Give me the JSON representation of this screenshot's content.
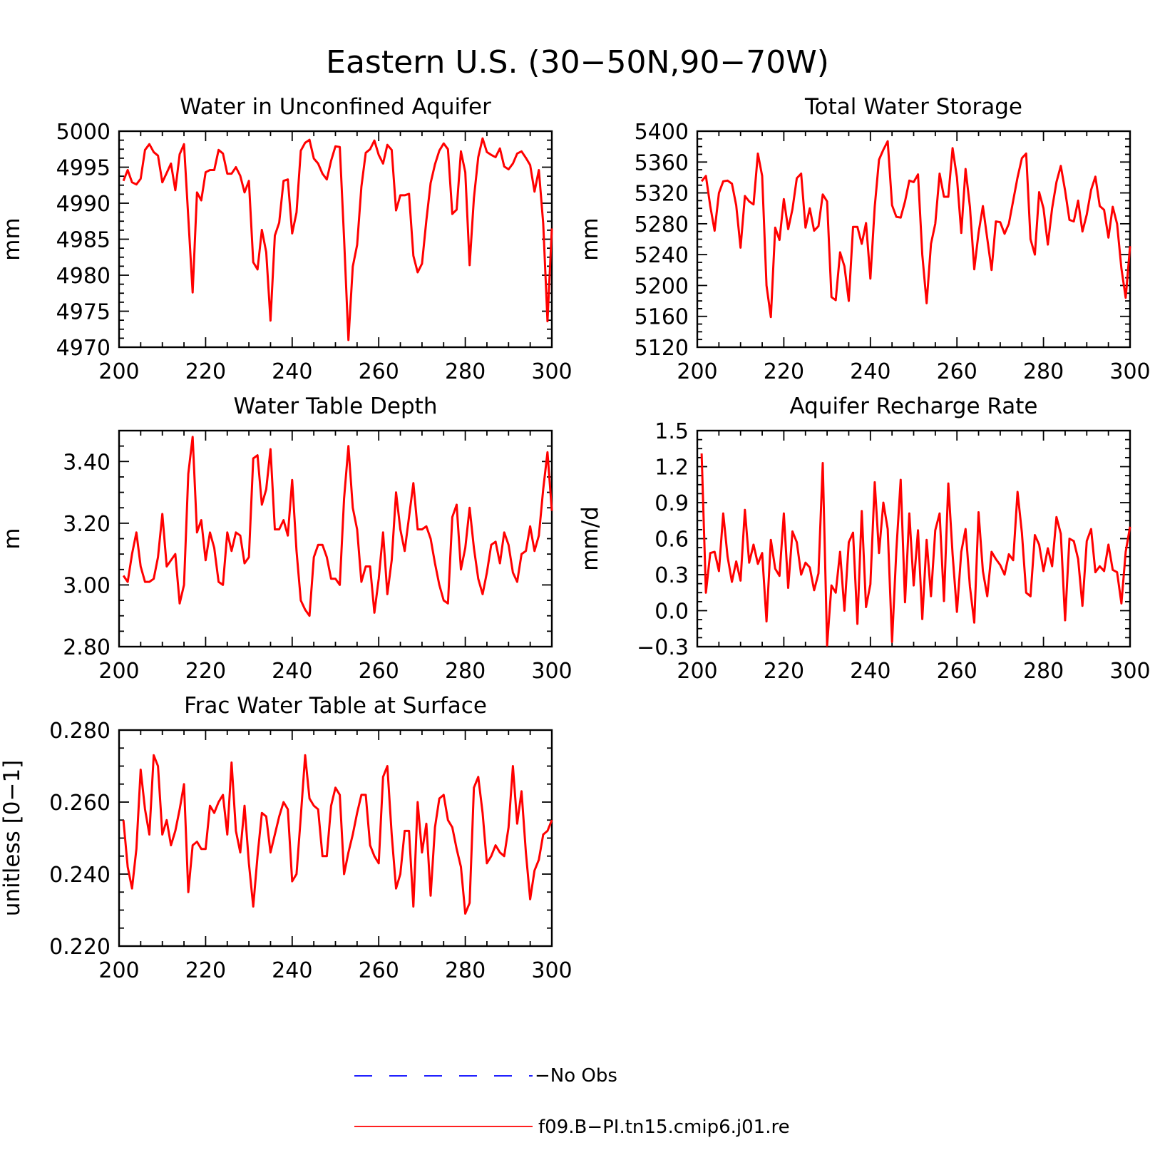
{
  "figure": {
    "title": "Eastern U.S. (30−50N,90−70W)",
    "legend": [
      {
        "label": "−No Obs",
        "color": "#0000ff",
        "dash": true
      },
      {
        "label": "f09.B−PI.tn15.cmip6.j01.re",
        "color": "#ff0000",
        "dash": false
      }
    ],
    "line_color": "#ff0000"
  },
  "chart_data": [
    {
      "type": "line",
      "title": "Water in Unconfined Aquifer",
      "ylabel": "mm",
      "xlim": [
        200,
        300
      ],
      "ylim": [
        4970,
        5000
      ],
      "xticks": [
        200,
        220,
        240,
        260,
        280,
        300
      ],
      "xtick_labels": [
        "200",
        "220",
        "240",
        "260",
        "280",
        "300"
      ],
      "yticks": [
        4970,
        4975,
        4980,
        4985,
        4990,
        4995,
        5000
      ],
      "ytick_labels": [
        "4970",
        "4975",
        "4980",
        "4985",
        "4990",
        "4995",
        "5000"
      ],
      "x_start": 201,
      "series": [
        {
          "name": "f09.B−PI.tn15.cmip6.j01.re",
          "values": [
            4993.1,
            4994.6,
            4992.9,
            4992.6,
            4993.4,
            4997.4,
            4998.2,
            4997.1,
            4996.6,
            4992.9,
            4994.2,
            4995.5,
            4991.8,
            4996.8,
            4998.2,
            4988.0,
            4977.6,
            4991.5,
            4990.4,
            4994.3,
            4994.6,
            4994.6,
            4997.4,
            4996.9,
            4994.1,
            4994.1,
            4995.0,
            4993.8,
            4991.5,
            4993.1,
            4981.8,
            4980.8,
            4986.3,
            4983.2,
            4973.7,
            4985.5,
            4987.3,
            4993.1,
            4993.3,
            4985.8,
            4988.7,
            4997.3,
            4998.4,
            4998.8,
            4996.2,
            4995.5,
            4994.1,
            4993.3,
            4995.9,
            4997.9,
            4997.8,
            4985.1,
            4971.0,
            4981.2,
            4984.2,
            4992.3,
            4997.0,
            4997.5,
            4998.7,
            4996.7,
            4995.5,
            4998.1,
            4997.4,
            4989.0,
            4991.1,
            4991.1,
            4991.3,
            4982.7,
            4980.4,
            4981.6,
            4987.6,
            4992.8,
            4995.4,
            4997.3,
            4998.3,
            4997.5,
            4988.5,
            4989.1,
            4997.2,
            4994.3,
            4981.4,
            4990.7,
            4996.4,
            4999.0,
            4997.1,
            4996.7,
            4996.4,
            4997.6,
            4995.1,
            4994.7,
            4995.5,
            4996.9,
            4997.2,
            4996.3,
            4995.3,
            4991.6,
            4994.6,
            4987.2,
            4973.6,
            4986.5
          ]
        }
      ]
    },
    {
      "type": "line",
      "title": "Total Water Storage",
      "ylabel": "mm",
      "xlim": [
        200,
        300
      ],
      "ylim": [
        5120,
        5400
      ],
      "xticks": [
        200,
        220,
        240,
        260,
        280,
        300
      ],
      "xtick_labels": [
        "200",
        "220",
        "240",
        "260",
        "280",
        "300"
      ],
      "yticks": [
        5120,
        5160,
        5200,
        5240,
        5280,
        5320,
        5360,
        5400
      ],
      "ytick_labels": [
        "5120",
        "5160",
        "5200",
        "5240",
        "5280",
        "5320",
        "5360",
        "5400"
      ],
      "x_start": 201,
      "series": [
        {
          "name": "f09.B−PI.tn15.cmip6.j01.re",
          "values": [
            5335,
            5342,
            5303,
            5271,
            5320,
            5335,
            5336,
            5332,
            5304,
            5249,
            5316,
            5309,
            5305,
            5371,
            5342,
            5200,
            5159,
            5275,
            5259,
            5312,
            5273,
            5299,
            5339,
            5345,
            5275,
            5300,
            5271,
            5277,
            5318,
            5309,
            5185,
            5181,
            5243,
            5225,
            5180,
            5276,
            5276,
            5254,
            5281,
            5209,
            5302,
            5363,
            5376,
            5387,
            5304,
            5289,
            5288,
            5309,
            5336,
            5334,
            5344,
            5240,
            5177,
            5254,
            5280,
            5345,
            5315,
            5315,
            5378,
            5340,
            5268,
            5351,
            5302,
            5221,
            5268,
            5303,
            5261,
            5220,
            5283,
            5282,
            5267,
            5280,
            5310,
            5340,
            5365,
            5371,
            5260,
            5240,
            5321,
            5300,
            5253,
            5300,
            5334,
            5355,
            5323,
            5285,
            5283,
            5310,
            5270,
            5292,
            5324,
            5341,
            5303,
            5298,
            5262,
            5302,
            5280,
            5222,
            5184,
            5251
          ]
        }
      ]
    },
    {
      "type": "line",
      "title": "Water Table Depth",
      "ylabel": "m",
      "xlim": [
        200,
        300
      ],
      "ylim": [
        2.8,
        3.5
      ],
      "xticks": [
        200,
        220,
        240,
        260,
        280,
        300
      ],
      "xtick_labels": [
        "200",
        "220",
        "240",
        "260",
        "280",
        "300"
      ],
      "yticks": [
        2.8,
        3.0,
        3.2,
        3.4
      ],
      "ytick_labels": [
        "2.80",
        "3.00",
        "3.20",
        "3.40"
      ],
      "x_start": 201,
      "series": [
        {
          "name": "f09.B−PI.tn15.cmip6.j01.re",
          "values": [
            3.03,
            3.01,
            3.1,
            3.17,
            3.06,
            3.01,
            3.01,
            3.02,
            3.09,
            3.23,
            3.06,
            3.08,
            3.1,
            2.94,
            3.0,
            3.36,
            3.48,
            3.17,
            3.21,
            3.08,
            3.17,
            3.12,
            3.01,
            3.0,
            3.17,
            3.11,
            3.17,
            3.16,
            3.07,
            3.09,
            3.41,
            3.42,
            3.26,
            3.31,
            3.44,
            3.18,
            3.18,
            3.21,
            3.16,
            3.34,
            3.11,
            2.95,
            2.92,
            2.9,
            3.09,
            3.13,
            3.13,
            3.09,
            3.02,
            3.02,
            3.0,
            3.28,
            3.45,
            3.25,
            3.18,
            3.01,
            3.06,
            3.06,
            2.91,
            3.02,
            3.17,
            2.97,
            3.08,
            3.3,
            3.18,
            3.11,
            3.22,
            3.33,
            3.18,
            3.18,
            3.19,
            3.15,
            3.07,
            3.0,
            2.95,
            2.94,
            3.22,
            3.26,
            3.05,
            3.12,
            3.25,
            3.12,
            3.02,
            2.97,
            3.04,
            3.13,
            3.14,
            3.07,
            3.17,
            3.13,
            3.04,
            3.01,
            3.1,
            3.11,
            3.19,
            3.11,
            3.16,
            3.31,
            3.43,
            3.24
          ]
        }
      ]
    },
    {
      "type": "line",
      "title": "Aquifer Recharge Rate",
      "ylabel": "mm/d",
      "xlim": [
        200,
        300
      ],
      "ylim": [
        -0.3,
        1.5
      ],
      "xticks": [
        200,
        220,
        240,
        260,
        280,
        300
      ],
      "xtick_labels": [
        "200",
        "220",
        "240",
        "260",
        "280",
        "300"
      ],
      "yticks": [
        -0.3,
        0.0,
        0.3,
        0.6,
        0.9,
        1.2,
        1.5
      ],
      "ytick_labels": [
        "−0.3",
        "0.0",
        "0.3",
        "0.6",
        "0.9",
        "1.2",
        "1.5"
      ],
      "x_start": 201,
      "series": [
        {
          "name": "f09.B−PI.tn15.cmip6.j01.re",
          "values": [
            1.31,
            0.15,
            0.48,
            0.49,
            0.33,
            0.81,
            0.45,
            0.24,
            0.41,
            0.25,
            0.84,
            0.4,
            0.55,
            0.39,
            0.48,
            -0.09,
            0.59,
            0.35,
            0.29,
            0.81,
            0.19,
            0.66,
            0.57,
            0.3,
            0.4,
            0.36,
            0.17,
            0.31,
            1.23,
            -0.29,
            0.21,
            0.15,
            0.49,
            0.0,
            0.57,
            0.65,
            -0.11,
            0.83,
            0.03,
            0.22,
            1.07,
            0.48,
            0.9,
            0.68,
            -0.26,
            0.5,
            1.09,
            0.07,
            0.81,
            0.21,
            0.67,
            -0.07,
            0.59,
            0.12,
            0.67,
            0.81,
            0.08,
            1.06,
            0.47,
            -0.01,
            0.49,
            0.68,
            0.2,
            -0.1,
            0.82,
            0.33,
            0.12,
            0.49,
            0.43,
            0.38,
            0.3,
            0.47,
            0.42,
            0.99,
            0.65,
            0.15,
            0.12,
            0.63,
            0.55,
            0.33,
            0.52,
            0.37,
            0.78,
            0.64,
            -0.08,
            0.6,
            0.58,
            0.43,
            0.04,
            0.58,
            0.68,
            0.32,
            0.37,
            0.33,
            0.55,
            0.34,
            0.32,
            0.06,
            0.49,
            0.7
          ]
        }
      ]
    },
    {
      "type": "line",
      "title": "Frac Water Table at Surface",
      "ylabel": "unitless [0−1]",
      "xlim": [
        200,
        300
      ],
      "ylim": [
        0.22,
        0.28
      ],
      "xticks": [
        200,
        220,
        240,
        260,
        280,
        300
      ],
      "xtick_labels": [
        "200",
        "220",
        "240",
        "260",
        "280",
        "300"
      ],
      "yticks": [
        0.22,
        0.24,
        0.26,
        0.28
      ],
      "ytick_labels": [
        "0.220",
        "0.240",
        "0.260",
        "0.280"
      ],
      "x_start": 201,
      "series": [
        {
          "name": "f09.B−PI.tn15.cmip6.j01.re",
          "values": [
            0.255,
            0.242,
            0.236,
            0.247,
            0.269,
            0.258,
            0.251,
            0.273,
            0.27,
            0.251,
            0.255,
            0.248,
            0.252,
            0.258,
            0.265,
            0.235,
            0.248,
            0.249,
            0.247,
            0.247,
            0.259,
            0.257,
            0.26,
            0.262,
            0.251,
            0.271,
            0.252,
            0.246,
            0.259,
            0.243,
            0.231,
            0.245,
            0.257,
            0.256,
            0.246,
            0.251,
            0.256,
            0.26,
            0.258,
            0.238,
            0.24,
            0.256,
            0.273,
            0.261,
            0.259,
            0.258,
            0.245,
            0.245,
            0.259,
            0.264,
            0.262,
            0.24,
            0.246,
            0.251,
            0.257,
            0.262,
            0.262,
            0.248,
            0.245,
            0.243,
            0.267,
            0.27,
            0.251,
            0.236,
            0.24,
            0.252,
            0.252,
            0.231,
            0.26,
            0.246,
            0.254,
            0.234,
            0.253,
            0.261,
            0.262,
            0.255,
            0.253,
            0.247,
            0.242,
            0.229,
            0.232,
            0.264,
            0.267,
            0.257,
            0.243,
            0.245,
            0.248,
            0.246,
            0.245,
            0.253,
            0.27,
            0.254,
            0.263,
            0.246,
            0.233,
            0.241,
            0.244,
            0.251,
            0.252,
            0.255
          ]
        }
      ]
    }
  ]
}
